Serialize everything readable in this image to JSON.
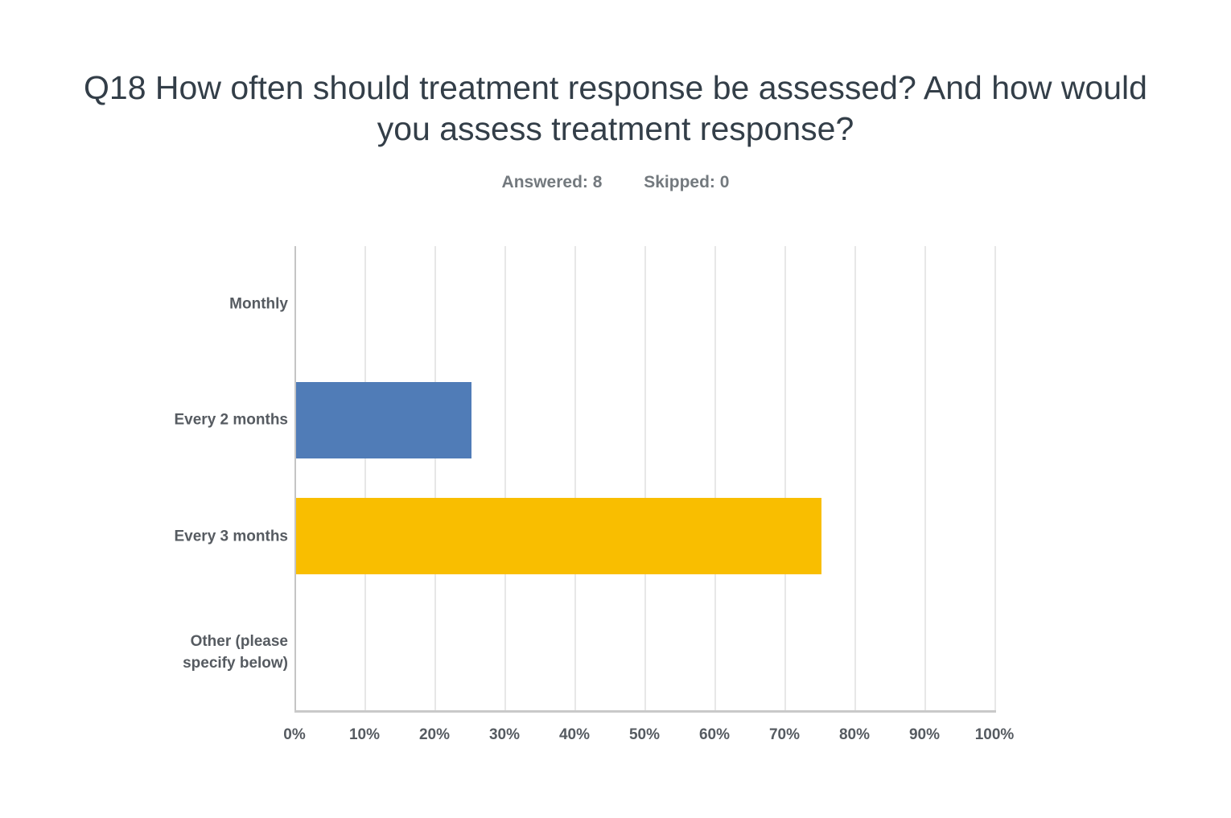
{
  "header": {
    "title_line1": "Q18 How often should treatment response be assessed? And how would",
    "title_line2": "you assess treatment response?",
    "answered_label": "Answered: 8",
    "skipped_label": "Skipped: 0"
  },
  "colors": {
    "title_text": "#333E48",
    "stats_text": "#73797E",
    "label_text": "#565B61",
    "gridline": "#E7E7E7",
    "zero_line": "#C5C5C5",
    "axis_line": "#C9C9C9",
    "bar_blue": "#507CB7",
    "bar_yellow": "#F9BE00",
    "background": "#FFFFFF"
  },
  "chart_data": {
    "type": "bar",
    "orientation": "horizontal",
    "title": "Q18 How often should treatment response be assessed? And how would you assess treatment response?",
    "answered": 8,
    "skipped": 0,
    "categories": [
      "Monthly",
      "Every 2 months",
      "Every 3 months",
      "Other (please specify below)"
    ],
    "values": [
      0,
      25,
      75,
      0
    ],
    "unit": "%",
    "bar_colors": [
      null,
      "#507CB7",
      "#F9BE00",
      null
    ],
    "xlim": [
      0,
      100
    ],
    "x_ticks": [
      "0%",
      "10%",
      "20%",
      "30%",
      "40%",
      "50%",
      "60%",
      "70%",
      "80%",
      "90%",
      "100%"
    ],
    "grid": "vertical-only",
    "legend": "none",
    "xlabel": "",
    "ylabel": ""
  }
}
